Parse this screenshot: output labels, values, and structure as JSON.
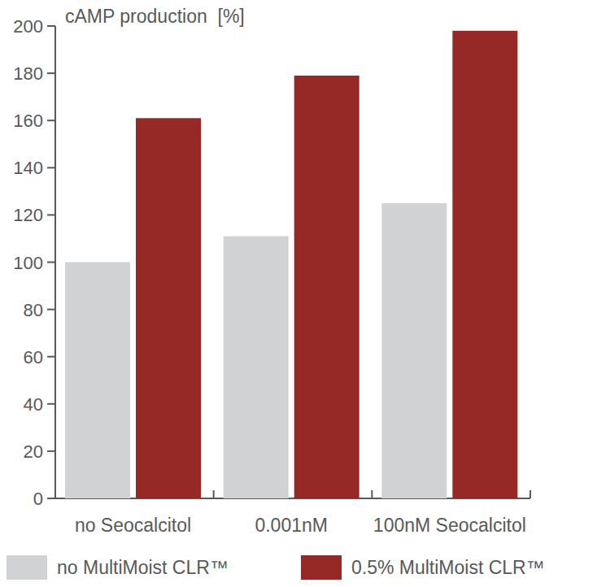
{
  "chart_data": {
    "type": "bar",
    "y_label": "cAMP production  [%]",
    "categories": [
      "no Seocalcitol",
      "0.001nM",
      "100nM Seocalcitol"
    ],
    "series": [
      {
        "name": "no MultiMoist CLR™",
        "color": "#d1d2d4",
        "values": [
          100,
          111,
          125
        ]
      },
      {
        "name": "0.5% MultiMoist CLR™",
        "color": "#962926",
        "values": [
          161,
          179,
          198
        ]
      }
    ],
    "ylim": [
      0,
      200
    ],
    "yticks": [
      0,
      20,
      40,
      60,
      80,
      100,
      120,
      140,
      160,
      180,
      200
    ],
    "grid": false,
    "legend": "bottom"
  }
}
